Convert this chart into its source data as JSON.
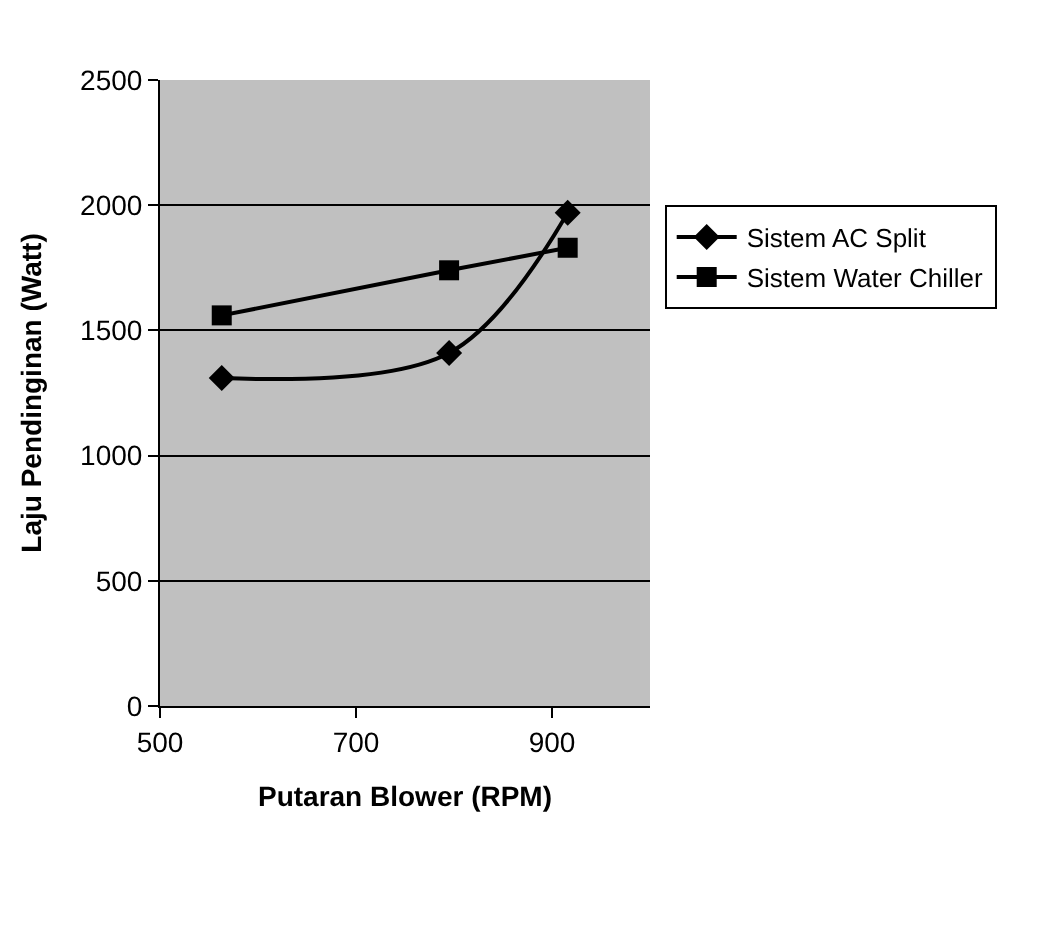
{
  "chart_data": {
    "type": "line",
    "xlabel": "Putaran Blower (RPM)",
    "ylabel": "Laju Pendinginan (Watt)",
    "series": [
      {
        "name": "Sistem AC Split",
        "color": "#000000",
        "marker": "diamond",
        "x": [
          563,
          795,
          916
        ],
        "values": [
          1310,
          1410,
          1970
        ]
      },
      {
        "name": "Sistem Water Chiller",
        "color": "#000000",
        "marker": "square",
        "x": [
          563,
          795,
          916
        ],
        "values": [
          1560,
          1740,
          1830
        ]
      }
    ],
    "xlim": [
      500,
      1000
    ],
    "xticks": [
      500,
      700,
      900
    ],
    "ylim": [
      0,
      2500
    ],
    "yticks": [
      0,
      500,
      1000,
      1500,
      2000,
      2500
    ],
    "grid": "y",
    "legend": "right",
    "line_style": "solid"
  }
}
